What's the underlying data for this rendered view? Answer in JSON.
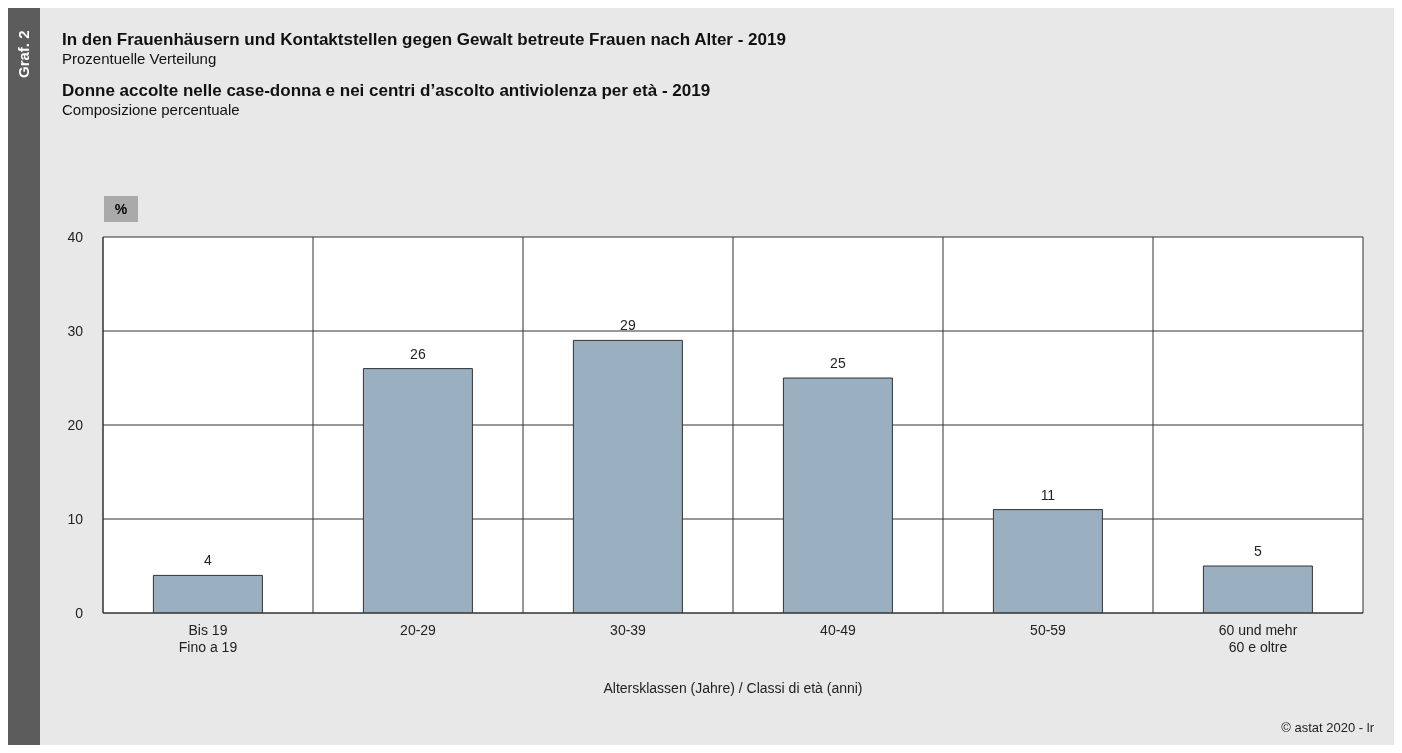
{
  "chart_data": {
    "type": "bar",
    "title": "In den Frauenhäusern und Kontaktstellen gegen Gewalt betreute Frauen nach Alter - 2019",
    "subtitle": "Prozentuelle Verteilung",
    "annotations": [
      "Graf. 2",
      "Donne accolte nelle case-donna e nei centri d’ascolto antiviolenza per età - 2019",
      "Composizione percentuale",
      "© astat 2020 - lr"
    ],
    "categories": [
      "Bis 19\nFino a 19",
      "20-29",
      "30-39",
      "40-49",
      "50-59",
      "60 und mehr\n60 e oltre"
    ],
    "values": [
      4,
      26,
      29,
      25,
      11,
      5
    ],
    "color": "#9aafbf",
    "data_labels": true,
    "xlabel": "Altersklassen (Jahre) / Classi di età (anni)",
    "ylabel": "%",
    "ylim": [
      0,
      40
    ],
    "yticks": [
      0,
      10,
      20,
      30,
      40
    ],
    "grid": true
  }
}
